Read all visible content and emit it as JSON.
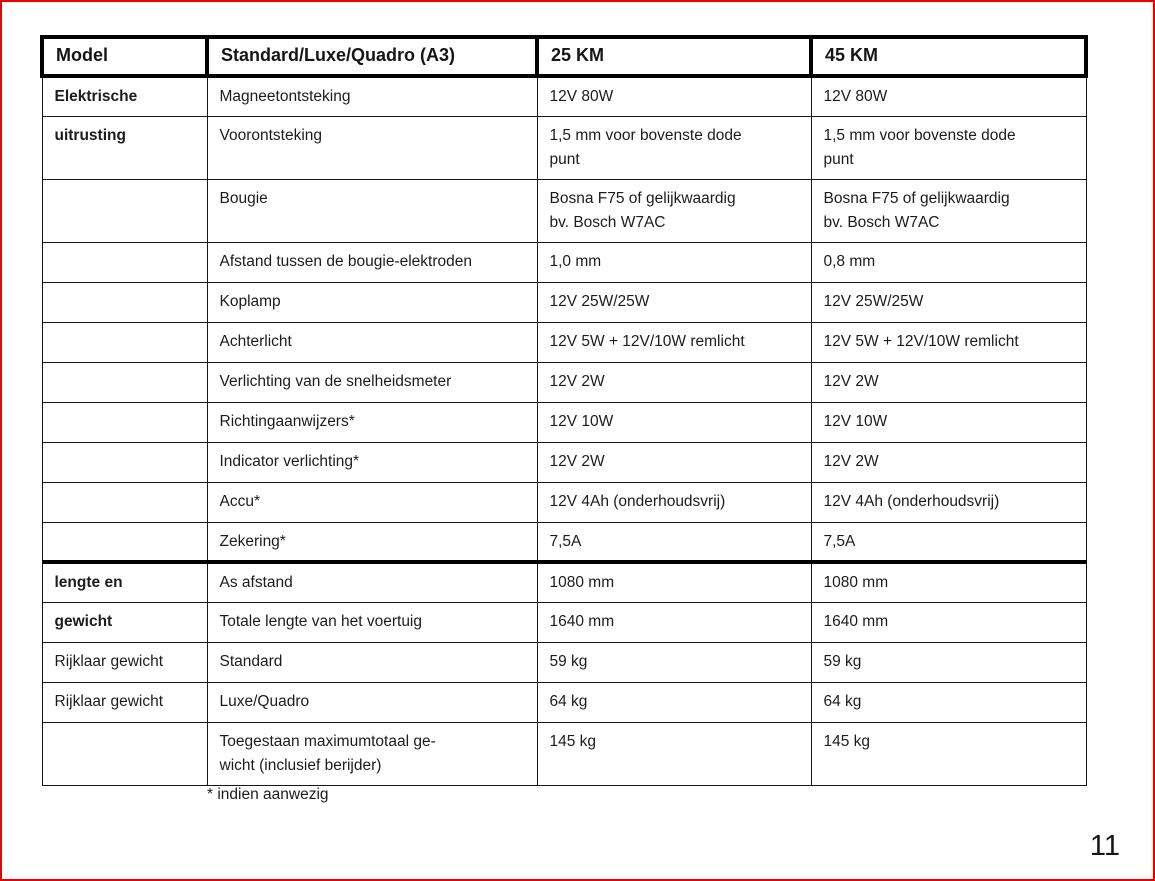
{
  "page": {
    "footnote": "* indien aanwezig",
    "number": "11",
    "border_color": "#ee0000"
  },
  "table": {
    "headers": [
      "Model",
      "Standard/Luxe/Quadro (A3)",
      "25 KM",
      "45 KM"
    ],
    "rows": [
      {
        "model": "Elektrische",
        "label": "Magneetontsteking",
        "km25": "12V 80W",
        "km45": "12V 80W"
      },
      {
        "model": "uitrusting",
        "label": "Voorontsteking",
        "km25": "1,5 mm voor bovenste dode\npunt",
        "km45": "1,5 mm voor bovenste dode\npunt"
      },
      {
        "model": "",
        "label": "Bougie",
        "km25": "Bosna F75 of gelijkwaardig\nbv. Bosch W7AC",
        "km45": "Bosna F75 of gelijkwaardig\nbv. Bosch W7AC"
      },
      {
        "model": "",
        "label": "Afstand tussen de bougie-elektroden",
        "km25": "1,0 mm",
        "km45": "0,8 mm"
      },
      {
        "model": "",
        "label": "Koplamp",
        "km25": "12V 25W/25W",
        "km45": "12V 25W/25W"
      },
      {
        "model": "",
        "label": "Achterlicht",
        "km25": "12V 5W + 12V/10W remlicht",
        "km45": "12V 5W + 12V/10W remlicht"
      },
      {
        "model": "",
        "label": "Verlichting van de snelheidsmeter",
        "km25": "12V 2W",
        "km45": "12V 2W"
      },
      {
        "model": "",
        "label": "Richtingaanwijzers*",
        "km25": "12V 10W",
        "km45": "12V 10W"
      },
      {
        "model": "",
        "label": "Indicator verlichting*",
        "km25": "12V 2W",
        "km45": "12V 2W"
      },
      {
        "model": "",
        "label": "Accu*",
        "km25": "12V 4Ah (onderhoudsvrij)",
        "km45": "12V 4Ah (onderhoudsvrij)"
      },
      {
        "model": "",
        "label": "Zekering*",
        "km25": "7,5A",
        "km45": "7,5A"
      },
      {
        "model": "lengte en",
        "label": "As afstand",
        "km25": "1080 mm",
        "km45": "1080 mm"
      },
      {
        "model": "gewicht",
        "label": "Totale lengte van het voertuig",
        "km25": "1640 mm",
        "km45": "1640 mm"
      },
      {
        "model": "Rijklaar gewicht",
        "label": "Standard",
        "km25": "59 kg",
        "km45": "59 kg"
      },
      {
        "model": "Rijklaar gewicht",
        "label": "Luxe/Quadro",
        "km25": "64 kg",
        "km45": "64 kg"
      },
      {
        "model": "",
        "label": "Toegestaan maximumtotaal ge-\nwicht (inclusief berijder)",
        "km25": "145 kg",
        "km45": "145 kg"
      }
    ]
  }
}
